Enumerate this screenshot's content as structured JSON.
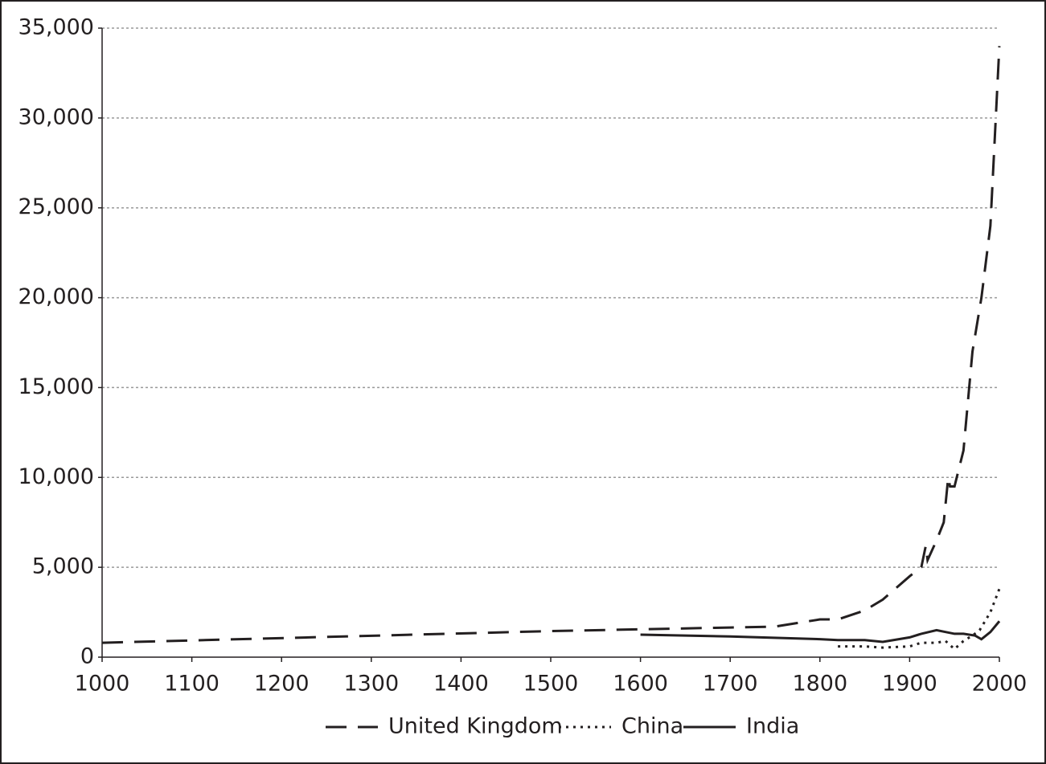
{
  "chart_data": {
    "type": "line",
    "xlim": [
      1000,
      2000
    ],
    "xticks": [
      1000,
      1100,
      1200,
      1300,
      1400,
      1500,
      1600,
      1700,
      1800,
      1900,
      2000
    ],
    "ylim": [
      0,
      35000
    ],
    "yticks": [
      0,
      {
        "value": 5000,
        "label": "5,000"
      },
      {
        "value": 10000,
        "label": "10,000"
      },
      {
        "value": 15000,
        "label": "15,000"
      },
      {
        "value": 20000,
        "label": "20,000"
      },
      {
        "value": 25000,
        "label": "25,000"
      },
      {
        "value": 30000,
        "label": "30,000"
      },
      {
        "value": 35000,
        "label": "35,000"
      }
    ],
    "grid": true,
    "legend": "bottom",
    "series": [
      {
        "name": "United Kingdom",
        "color": "#231f20",
        "dash": "dashed",
        "x": [
          1000,
          1500,
          1600,
          1700,
          1750,
          1800,
          1820,
          1850,
          1870,
          1900,
          1913,
          1918,
          1920,
          1930,
          1938,
          1943,
          1945,
          1950,
          1960,
          1970,
          1980,
          1990,
          2000
        ],
        "values": [
          800,
          1450,
          1550,
          1650,
          1700,
          2100,
          2100,
          2600,
          3200,
          4500,
          5000,
          6200,
          5400,
          6500,
          7500,
          10000,
          9500,
          9500,
          11500,
          17000,
          20000,
          24000,
          34000
        ]
      },
      {
        "name": "China",
        "color": "#231f20",
        "dash": "dotted",
        "x": [
          1820,
          1850,
          1870,
          1900,
          1913,
          1930,
          1940,
          1950,
          1960,
          1970,
          1978,
          1990,
          2000
        ],
        "values": [
          600,
          600,
          530,
          600,
          800,
          800,
          900,
          450,
          900,
          1200,
          1500,
          2500,
          3800
        ]
      },
      {
        "name": "India",
        "color": "#231f20",
        "dash": "solid",
        "x": [
          1600,
          1700,
          1800,
          1820,
          1850,
          1870,
          1900,
          1913,
          1930,
          1940,
          1950,
          1960,
          1973,
          1980,
          1990,
          2000
        ],
        "values": [
          1250,
          1150,
          1000,
          950,
          950,
          850,
          1100,
          1300,
          1500,
          1400,
          1300,
          1300,
          1200,
          1000,
          1400,
          2000
        ]
      }
    ]
  }
}
